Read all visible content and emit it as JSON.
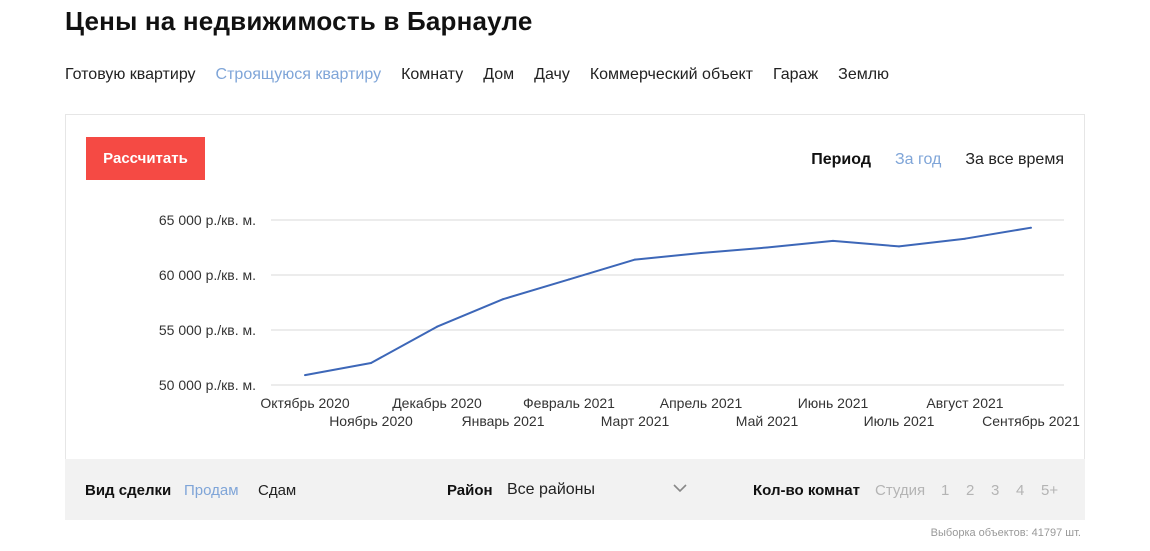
{
  "page": {
    "title": "Цены на недвижимость в Барнауле"
  },
  "property_types": [
    {
      "label": "Готовую квартиру",
      "active": false
    },
    {
      "label": "Строящуюся квартиру",
      "active": true
    },
    {
      "label": "Комнату",
      "active": false
    },
    {
      "label": "Дом",
      "active": false
    },
    {
      "label": "Дачу",
      "active": false
    },
    {
      "label": "Коммерческий объект",
      "active": false
    },
    {
      "label": "Гараж",
      "active": false
    },
    {
      "label": "Землю",
      "active": false
    }
  ],
  "calc_button": "Рассчитать",
  "period": {
    "label": "Период",
    "options": [
      {
        "label": "За год",
        "active": true
      },
      {
        "label": "За все время",
        "active": false
      }
    ]
  },
  "chart_data": {
    "type": "line",
    "x": [
      "Октябрь 2020",
      "Ноябрь 2020",
      "Декабрь 2020",
      "Январь 2021",
      "Февраль 2021",
      "Март 2021",
      "Апрель 2021",
      "Май 2021",
      "Июнь 2021",
      "Июль 2021",
      "Август 2021",
      "Сентябрь 2021"
    ],
    "series": [
      {
        "values": [
          50900,
          52000,
          55300,
          57800,
          59600,
          61400,
          62000,
          62500,
          63100,
          62600,
          63300,
          64300
        ]
      }
    ],
    "y_ticks": [
      50000,
      55000,
      60000,
      65000
    ],
    "y_tick_labels": [
      "50 000 р./кв. м.",
      "55 000 р./кв. м.",
      "60 000 р./кв. м.",
      "65 000 р./кв. м."
    ],
    "ylim": [
      50000,
      65000
    ],
    "grid": true,
    "line_color": "#3d67b8",
    "grid_color": "#d9d9d9"
  },
  "filters": {
    "deal_label": "Вид сделки",
    "deal_options": [
      {
        "label": "Продам",
        "active": true
      },
      {
        "label": "Сдам",
        "active": false
      }
    ],
    "district_label": "Район",
    "district_value": "Все районы",
    "rooms_label": "Кол-во комнат",
    "room_options": [
      "Студия",
      "1",
      "2",
      "3",
      "4",
      "5+"
    ]
  },
  "sample_text": "Выборка объектов: 41797 шт.",
  "colors": {
    "accent_red": "#f54a44",
    "link_blue": "#7fa5d8"
  }
}
